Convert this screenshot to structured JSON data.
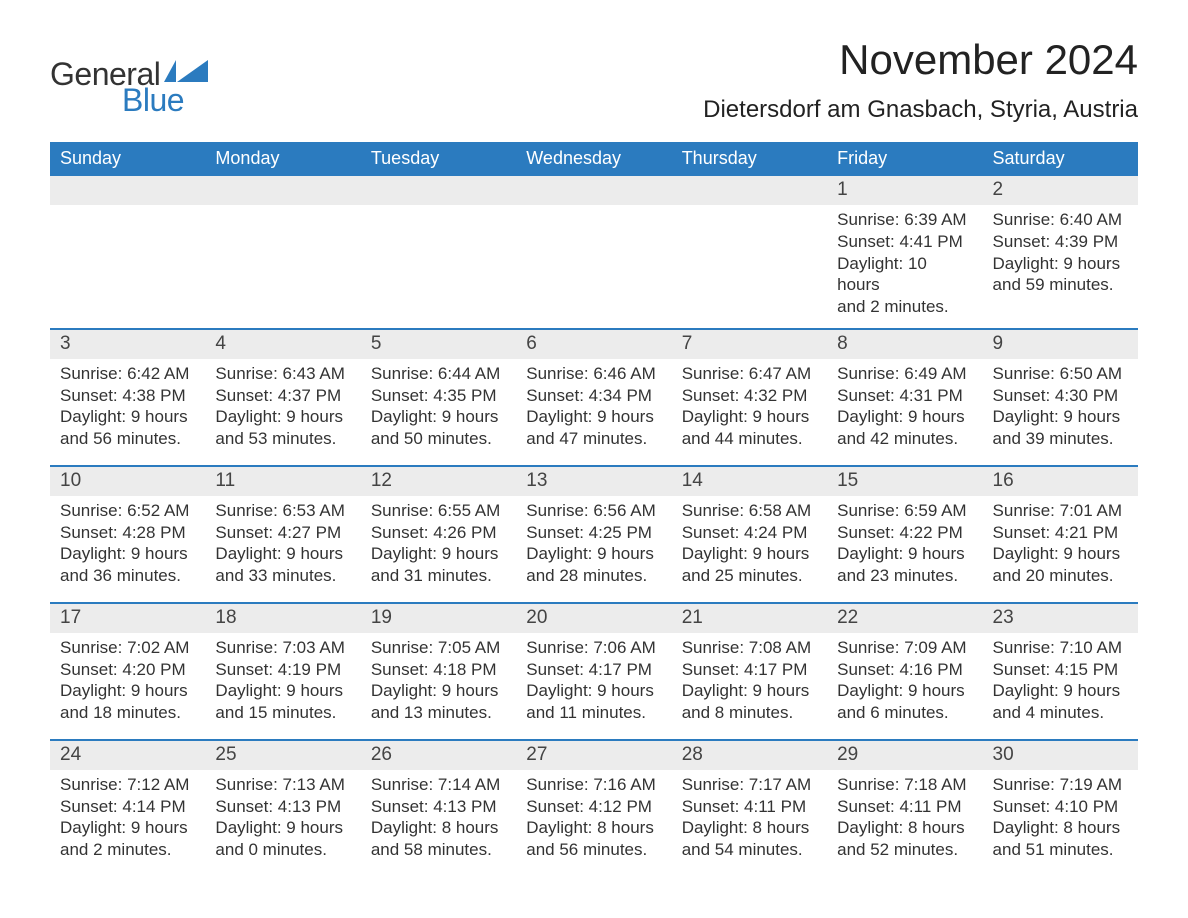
{
  "brand": {
    "word1": "General",
    "word2": "Blue",
    "text_color": "#333333",
    "accent_color": "#2b7bbf"
  },
  "title": "November 2024",
  "location": "Dietersdorf am Gnasbach, Styria, Austria",
  "colors": {
    "header_bg": "#2b7bbf",
    "header_text": "#ffffff",
    "daynum_bg": "#ececec",
    "week_border": "#2b7bbf",
    "body_text": "#333333",
    "page_bg": "#ffffff"
  },
  "typography": {
    "title_fontsize": 42,
    "location_fontsize": 24,
    "dow_fontsize": 18,
    "daynum_fontsize": 19,
    "detail_fontsize": 17
  },
  "days_of_week": [
    "Sunday",
    "Monday",
    "Tuesday",
    "Wednesday",
    "Thursday",
    "Friday",
    "Saturday"
  ],
  "weeks": [
    [
      null,
      null,
      null,
      null,
      null,
      {
        "n": "1",
        "sunrise": "Sunrise: 6:39 AM",
        "sunset": "Sunset: 4:41 PM",
        "dl1": "Daylight: 10 hours",
        "dl2": "and 2 minutes."
      },
      {
        "n": "2",
        "sunrise": "Sunrise: 6:40 AM",
        "sunset": "Sunset: 4:39 PM",
        "dl1": "Daylight: 9 hours",
        "dl2": "and 59 minutes."
      }
    ],
    [
      {
        "n": "3",
        "sunrise": "Sunrise: 6:42 AM",
        "sunset": "Sunset: 4:38 PM",
        "dl1": "Daylight: 9 hours",
        "dl2": "and 56 minutes."
      },
      {
        "n": "4",
        "sunrise": "Sunrise: 6:43 AM",
        "sunset": "Sunset: 4:37 PM",
        "dl1": "Daylight: 9 hours",
        "dl2": "and 53 minutes."
      },
      {
        "n": "5",
        "sunrise": "Sunrise: 6:44 AM",
        "sunset": "Sunset: 4:35 PM",
        "dl1": "Daylight: 9 hours",
        "dl2": "and 50 minutes."
      },
      {
        "n": "6",
        "sunrise": "Sunrise: 6:46 AM",
        "sunset": "Sunset: 4:34 PM",
        "dl1": "Daylight: 9 hours",
        "dl2": "and 47 minutes."
      },
      {
        "n": "7",
        "sunrise": "Sunrise: 6:47 AM",
        "sunset": "Sunset: 4:32 PM",
        "dl1": "Daylight: 9 hours",
        "dl2": "and 44 minutes."
      },
      {
        "n": "8",
        "sunrise": "Sunrise: 6:49 AM",
        "sunset": "Sunset: 4:31 PM",
        "dl1": "Daylight: 9 hours",
        "dl2": "and 42 minutes."
      },
      {
        "n": "9",
        "sunrise": "Sunrise: 6:50 AM",
        "sunset": "Sunset: 4:30 PM",
        "dl1": "Daylight: 9 hours",
        "dl2": "and 39 minutes."
      }
    ],
    [
      {
        "n": "10",
        "sunrise": "Sunrise: 6:52 AM",
        "sunset": "Sunset: 4:28 PM",
        "dl1": "Daylight: 9 hours",
        "dl2": "and 36 minutes."
      },
      {
        "n": "11",
        "sunrise": "Sunrise: 6:53 AM",
        "sunset": "Sunset: 4:27 PM",
        "dl1": "Daylight: 9 hours",
        "dl2": "and 33 minutes."
      },
      {
        "n": "12",
        "sunrise": "Sunrise: 6:55 AM",
        "sunset": "Sunset: 4:26 PM",
        "dl1": "Daylight: 9 hours",
        "dl2": "and 31 minutes."
      },
      {
        "n": "13",
        "sunrise": "Sunrise: 6:56 AM",
        "sunset": "Sunset: 4:25 PM",
        "dl1": "Daylight: 9 hours",
        "dl2": "and 28 minutes."
      },
      {
        "n": "14",
        "sunrise": "Sunrise: 6:58 AM",
        "sunset": "Sunset: 4:24 PM",
        "dl1": "Daylight: 9 hours",
        "dl2": "and 25 minutes."
      },
      {
        "n": "15",
        "sunrise": "Sunrise: 6:59 AM",
        "sunset": "Sunset: 4:22 PM",
        "dl1": "Daylight: 9 hours",
        "dl2": "and 23 minutes."
      },
      {
        "n": "16",
        "sunrise": "Sunrise: 7:01 AM",
        "sunset": "Sunset: 4:21 PM",
        "dl1": "Daylight: 9 hours",
        "dl2": "and 20 minutes."
      }
    ],
    [
      {
        "n": "17",
        "sunrise": "Sunrise: 7:02 AM",
        "sunset": "Sunset: 4:20 PM",
        "dl1": "Daylight: 9 hours",
        "dl2": "and 18 minutes."
      },
      {
        "n": "18",
        "sunrise": "Sunrise: 7:03 AM",
        "sunset": "Sunset: 4:19 PM",
        "dl1": "Daylight: 9 hours",
        "dl2": "and 15 minutes."
      },
      {
        "n": "19",
        "sunrise": "Sunrise: 7:05 AM",
        "sunset": "Sunset: 4:18 PM",
        "dl1": "Daylight: 9 hours",
        "dl2": "and 13 minutes."
      },
      {
        "n": "20",
        "sunrise": "Sunrise: 7:06 AM",
        "sunset": "Sunset: 4:17 PM",
        "dl1": "Daylight: 9 hours",
        "dl2": "and 11 minutes."
      },
      {
        "n": "21",
        "sunrise": "Sunrise: 7:08 AM",
        "sunset": "Sunset: 4:17 PM",
        "dl1": "Daylight: 9 hours",
        "dl2": "and 8 minutes."
      },
      {
        "n": "22",
        "sunrise": "Sunrise: 7:09 AM",
        "sunset": "Sunset: 4:16 PM",
        "dl1": "Daylight: 9 hours",
        "dl2": "and 6 minutes."
      },
      {
        "n": "23",
        "sunrise": "Sunrise: 7:10 AM",
        "sunset": "Sunset: 4:15 PM",
        "dl1": "Daylight: 9 hours",
        "dl2": "and 4 minutes."
      }
    ],
    [
      {
        "n": "24",
        "sunrise": "Sunrise: 7:12 AM",
        "sunset": "Sunset: 4:14 PM",
        "dl1": "Daylight: 9 hours",
        "dl2": "and 2 minutes."
      },
      {
        "n": "25",
        "sunrise": "Sunrise: 7:13 AM",
        "sunset": "Sunset: 4:13 PM",
        "dl1": "Daylight: 9 hours",
        "dl2": "and 0 minutes."
      },
      {
        "n": "26",
        "sunrise": "Sunrise: 7:14 AM",
        "sunset": "Sunset: 4:13 PM",
        "dl1": "Daylight: 8 hours",
        "dl2": "and 58 minutes."
      },
      {
        "n": "27",
        "sunrise": "Sunrise: 7:16 AM",
        "sunset": "Sunset: 4:12 PM",
        "dl1": "Daylight: 8 hours",
        "dl2": "and 56 minutes."
      },
      {
        "n": "28",
        "sunrise": "Sunrise: 7:17 AM",
        "sunset": "Sunset: 4:11 PM",
        "dl1": "Daylight: 8 hours",
        "dl2": "and 54 minutes."
      },
      {
        "n": "29",
        "sunrise": "Sunrise: 7:18 AM",
        "sunset": "Sunset: 4:11 PM",
        "dl1": "Daylight: 8 hours",
        "dl2": "and 52 minutes."
      },
      {
        "n": "30",
        "sunrise": "Sunrise: 7:19 AM",
        "sunset": "Sunset: 4:10 PM",
        "dl1": "Daylight: 8 hours",
        "dl2": "and 51 minutes."
      }
    ]
  ]
}
